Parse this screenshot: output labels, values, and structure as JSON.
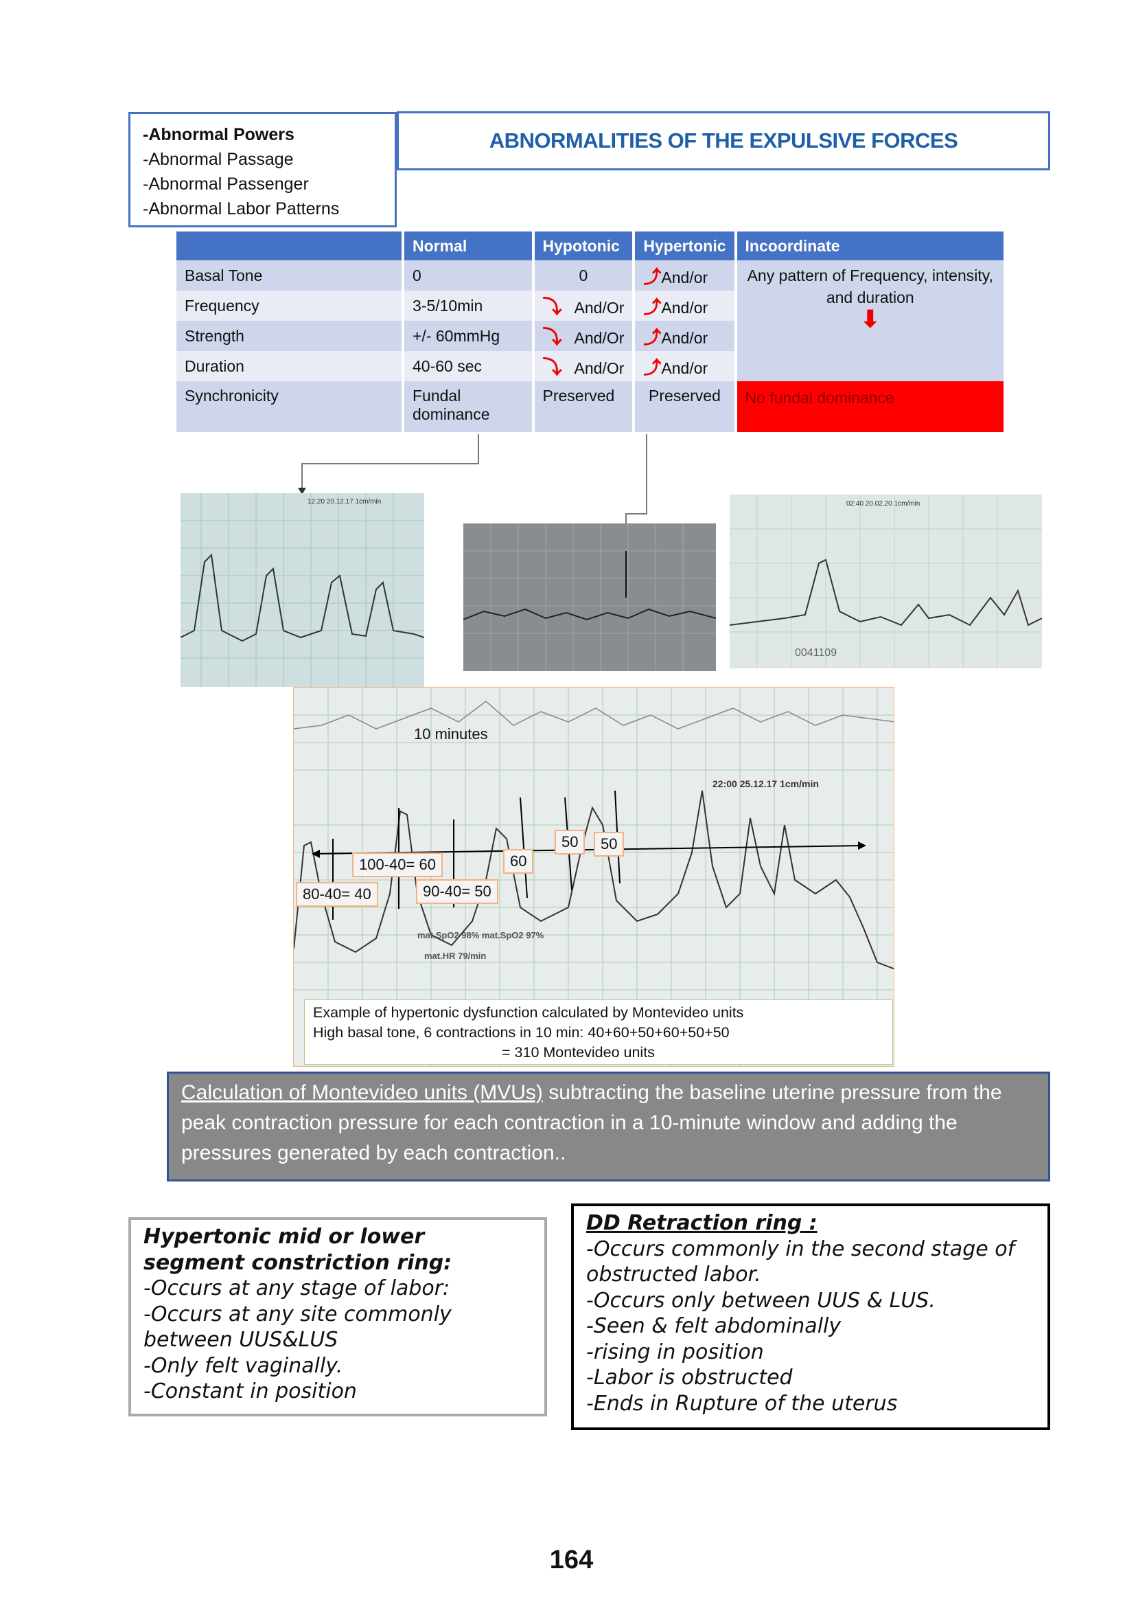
{
  "factors": [
    "-Abnormal Powers",
    "-Abnormal Passage",
    "-Abnormal Passenger",
    "-Abnormal Labor Patterns"
  ],
  "title": "ABNORMALITIES OF THE EXPULSIVE FORCES",
  "table": {
    "headers": [
      "",
      "Normal",
      "Hypotonic",
      "Hypertonic",
      "Incoordinate"
    ],
    "rows": [
      {
        "label": "Basal Tone",
        "normal": "0",
        "hypotonic": "0",
        "hypertonic": "And/or"
      },
      {
        "label": "Frequency",
        "normal": "3-5/10min",
        "hypotonic": "And/Or",
        "hypertonic": "And/or"
      },
      {
        "label": "Strength",
        "normal": "+/- 60mmHg",
        "hypotonic": "And/Or",
        "hypertonic": "And/or"
      },
      {
        "label": "Duration",
        "normal": "40-60 sec",
        "hypotonic": "And/Or",
        "hypertonic": "And/or"
      },
      {
        "label": "Synchronicity",
        "normal": "Fundal dominance",
        "hypotonic": "Preserved",
        "hypertonic": "Preserved"
      }
    ],
    "incoordinate_text": "Any pattern of Frequency, intensity, and duration",
    "incoordinate_result": "No fundal dominance",
    "colors": {
      "header": "#4472c4",
      "alert": "#ff0000",
      "arrow": "#e00000"
    },
    "icons": {
      "decrease": "curved-arrow-down-icon",
      "increase": "curved-arrow-up-icon"
    }
  },
  "photos": {
    "p1_stamp": "12:20 20.12.17 1cm/min",
    "p3_stamp": "02:40 20.02.20 1cm/min",
    "p3_code": "0041109",
    "main_stamp": "22:00 25.12.17 1cm/min",
    "main_spo2": "mat.SpO2 98%  mat.SpO2 97%",
    "main_hr": "mat.HR 79/min"
  },
  "annotations": {
    "span": "10 minutes",
    "boxes": [
      "80-40= 40",
      "100-40= 60",
      "90-40= 50",
      "60",
      "50",
      "50"
    ]
  },
  "caption": [
    "Example of hypertonic dysfunction calculated by Montevideo units",
    "High basal tone, 6 contractions in 10 min: 40+60+50+60+50+50",
    "= 310 Montevideo units"
  ],
  "mvu": {
    "link": "Calculation of Montevideo units (MVUs)",
    "text": " subtracting the baseline uterine pressure from the peak contraction pressure for each contraction in a 10-minute window and adding the pressures generated by each contraction.."
  },
  "constriction": {
    "title": " Hypertonic mid or lower segment constriction ring:",
    "lines": [
      "-Occurs at any stage of labor:",
      "-Occurs at any site commonly between UUS&LUS",
      "-Only felt vaginally.",
      "-Constant in position"
    ]
  },
  "retraction": {
    "title": "DD Retraction ring :",
    "lines": [
      "-Occurs commonly in the second stage of obstructed labor.",
      "-Occurs only between UUS & LUS.",
      "-Seen & felt abdominally",
      "-rising in position",
      "-Labor is obstructed",
      "-Ends in Rupture of the uterus"
    ]
  },
  "page_number": "164"
}
